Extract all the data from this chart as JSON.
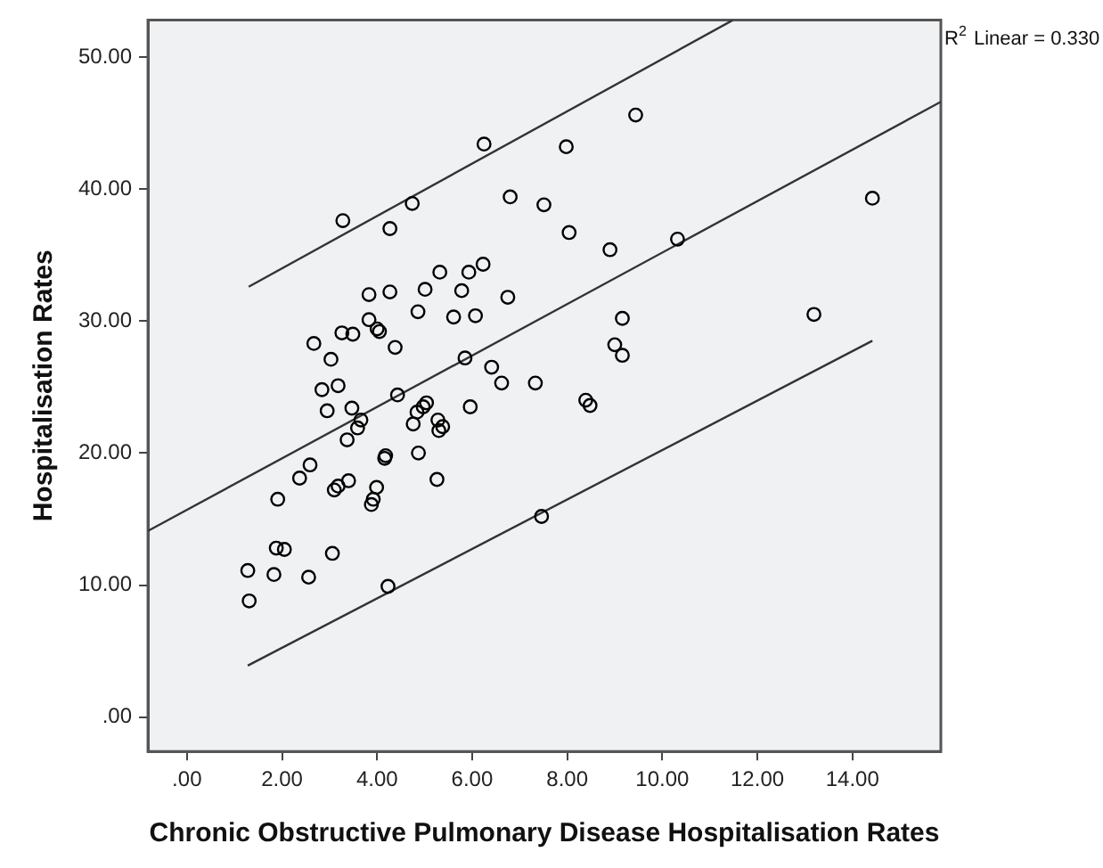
{
  "chart_data": {
    "type": "scatter",
    "xlabel": "Chronic Obstructive Pulmonary Disease Hospitalisation Rates",
    "ylabel": "Hospitalisation Rates",
    "xlim": [
      -0.82,
      15.86
    ],
    "ylim": [
      -2.6,
      52.8
    ],
    "xticks": [
      {
        "value": 0,
        "label": ".00"
      },
      {
        "value": 2,
        "label": "2.00"
      },
      {
        "value": 4,
        "label": "4.00"
      },
      {
        "value": 6,
        "label": "6.00"
      },
      {
        "value": 8,
        "label": "8.00"
      },
      {
        "value": 10,
        "label": "10.00"
      },
      {
        "value": 12,
        "label": "12.00"
      },
      {
        "value": 14,
        "label": "14.00"
      }
    ],
    "yticks": [
      {
        "value": 0,
        "label": ".00"
      },
      {
        "value": 10,
        "label": "10.00"
      },
      {
        "value": 20,
        "label": "20.00"
      },
      {
        "value": 30,
        "label": "30.00"
      },
      {
        "value": 40,
        "label": "40.00"
      },
      {
        "value": 50,
        "label": "50.00"
      }
    ],
    "grid": false,
    "legend": false,
    "marker": "circle",
    "annotations": [
      "R$^{2}$ Linear = 0.330"
    ],
    "series": [
      {
        "color": "#000000",
        "x": [
          3.28,
          4.27,
          4.74,
          6.25,
          7.98,
          9.44,
          6.8,
          7.51,
          8.04,
          8.9,
          5.32,
          5.93,
          6.23,
          3.83,
          4.27,
          5.01,
          5.78,
          6.75,
          4.86,
          5.61,
          6.07,
          3.83,
          4.0,
          4.05,
          3.26,
          3.49,
          2.67,
          3.03,
          4.38,
          5.85,
          9.16,
          9.0,
          9.16,
          6.41,
          6.62,
          7.33,
          10.32,
          14.42,
          13.19,
          2.84,
          3.18,
          2.95,
          3.47,
          4.43,
          5.04,
          4.97,
          4.84,
          3.66,
          3.59,
          4.76,
          5.28,
          5.38,
          5.3,
          5.96,
          8.39,
          8.48,
          3.37,
          4.18,
          4.16,
          4.87,
          2.59,
          2.37,
          3.4,
          5.26,
          3.1,
          3.18,
          3.99,
          3.92,
          3.88,
          1.91,
          7.46,
          1.88,
          2.05,
          3.06,
          1.28,
          1.83,
          2.56,
          1.31,
          4.23
        ],
        "values": [
          37.6,
          37.0,
          38.9,
          43.4,
          43.2,
          45.6,
          39.4,
          38.8,
          36.7,
          35.4,
          33.7,
          33.7,
          34.3,
          32.0,
          32.2,
          32.4,
          32.3,
          31.8,
          30.7,
          30.3,
          30.4,
          30.1,
          29.4,
          29.2,
          29.1,
          29.0,
          28.3,
          27.1,
          28.0,
          27.2,
          30.2,
          28.2,
          27.4,
          26.5,
          25.3,
          25.3,
          36.2,
          39.3,
          30.5,
          24.8,
          25.1,
          23.2,
          23.4,
          24.4,
          23.8,
          23.5,
          23.1,
          22.5,
          21.9,
          22.2,
          22.5,
          22.0,
          21.7,
          23.5,
          24.0,
          23.6,
          21.0,
          19.8,
          19.6,
          20.0,
          19.1,
          18.1,
          17.9,
          18.0,
          17.2,
          17.5,
          17.4,
          16.5,
          16.1,
          16.5,
          15.2,
          12.8,
          12.7,
          12.4,
          11.1,
          10.8,
          10.6,
          8.8,
          9.9
        ]
      },
      {
        "type": "line",
        "color": "#333333",
        "marker": "none",
        "x": [
          -0.82,
          15.86
        ],
        "values": [
          14.1,
          46.6
        ]
      },
      {
        "type": "line",
        "color": "#333333",
        "marker": "none",
        "x": [
          1.3,
          11.49
        ],
        "values": [
          32.6,
          52.8
        ]
      },
      {
        "type": "line",
        "color": "#333333",
        "marker": "none",
        "x": [
          1.28,
          14.42
        ],
        "values": [
          3.9,
          28.5
        ]
      }
    ]
  }
}
